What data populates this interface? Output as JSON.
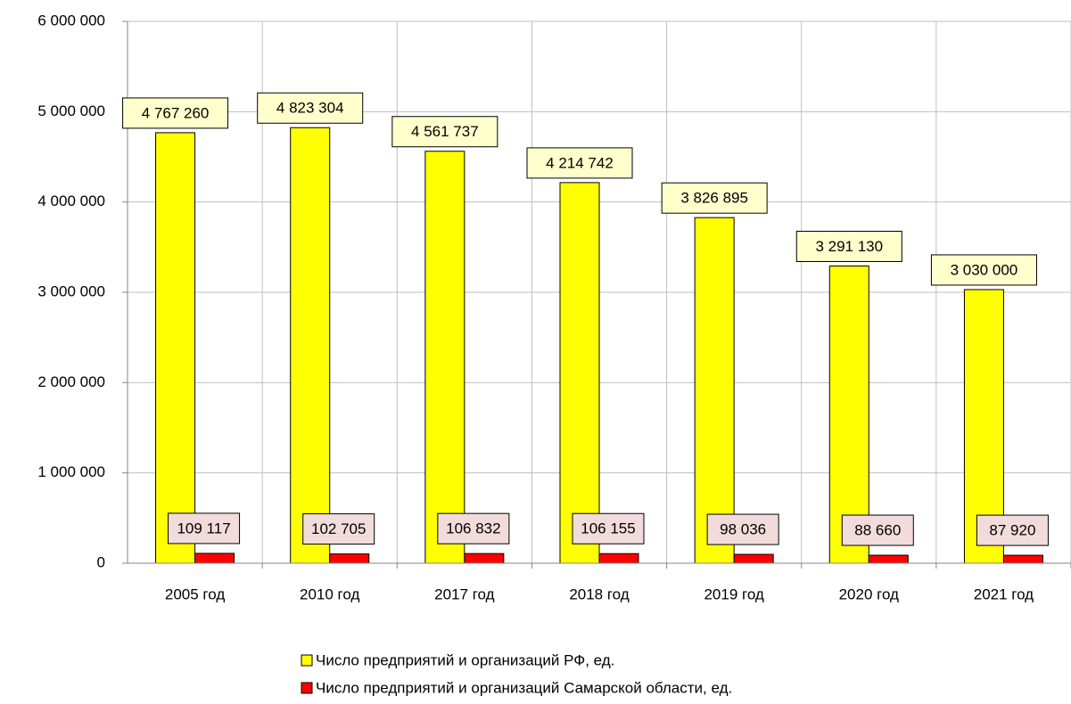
{
  "chart_data": {
    "type": "bar",
    "categories": [
      "2005 год",
      "2010 год",
      "2017 год",
      "2018 год",
      "2019 год",
      "2020 год",
      "2021 год"
    ],
    "series": [
      {
        "name": "Число предприятий и организаций РФ, ед.",
        "color": "#ffff00",
        "values": [
          4767260,
          4823304,
          4561737,
          4214742,
          3826895,
          3291130,
          3030000
        ],
        "value_labels": [
          "4 767 260",
          "4 823 304",
          "4 561 737",
          "4 214 742",
          "3 826 895",
          "3 291 130",
          "3 030 000"
        ]
      },
      {
        "name": "Число предприятий и организаций Самарской области, ед.",
        "color": "#ff0000",
        "values": [
          109117,
          102705,
          106832,
          106155,
          98036,
          88660,
          87920
        ],
        "value_labels": [
          "109 117",
          "102 705",
          "106 832",
          "106 155",
          "98 036",
          "88 660",
          "87 920"
        ]
      }
    ],
    "ylim": [
      0,
      6000000
    ],
    "yticks": [
      0,
      {
        "value": 1000000,
        "label": "1 000 000"
      },
      {
        "value": 2000000,
        "label": "2 000 000"
      },
      {
        "value": 3000000,
        "label": "3 000 000"
      },
      {
        "value": 4000000,
        "label": "4 000 000"
      },
      {
        "value": 5000000,
        "label": "5 000 000"
      },
      {
        "value": 6000000,
        "label": "6 000 000"
      }
    ],
    "grid": true,
    "legend": "bottom"
  }
}
